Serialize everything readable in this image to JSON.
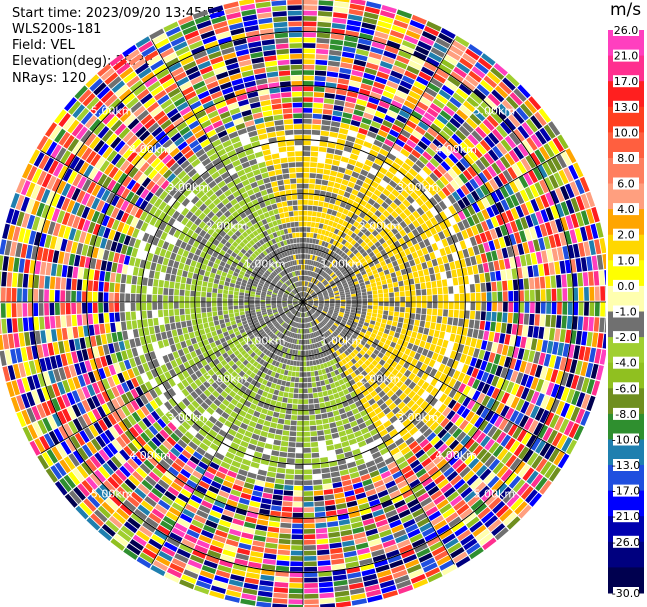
{
  "header": {
    "start_time": "Start time: 2023/09/20 13:45:53",
    "instrument": "WLS200s-181",
    "field": "Field: VEL",
    "elevation": "Elevation(deg): 35.30",
    "nrays": "NRays: 120"
  },
  "chart_data": {
    "type": "ppi",
    "field": "VEL",
    "unit": "m/s",
    "n_rays": 120,
    "elevation_deg": 35.3,
    "range_rings_km": [
      1.0,
      2.0,
      3.0,
      4.0,
      5.0
    ],
    "range_labels": [
      "1.00km",
      "2.00km",
      "3.00km",
      "4.00km",
      "5.00km"
    ],
    "max_range_km": 5.6,
    "colorbar": {
      "ticks": [
        "26.0",
        "21.0",
        "17.0",
        "13.0",
        "10.0",
        "8.0",
        "6.0",
        "4.0",
        "2.0",
        "1.0",
        "0.0",
        "-1.0",
        "-2.0",
        "-4.0",
        "-6.0",
        "-8.0",
        "-10.0",
        "-13.0",
        "-17.0",
        "-21.0",
        "-26.0",
        "-30.0"
      ],
      "bins": [
        {
          "min": 26,
          "max": 30,
          "color": "#ff3fbf"
        },
        {
          "min": 21,
          "max": 26,
          "color": "#ff2f8f"
        },
        {
          "min": 17,
          "max": 21,
          "color": "#ff1f1f"
        },
        {
          "min": 13,
          "max": 17,
          "color": "#ff3f1f"
        },
        {
          "min": 10,
          "max": 13,
          "color": "#ff5f3f"
        },
        {
          "min": 8,
          "max": 10,
          "color": "#ff7f5f"
        },
        {
          "min": 6,
          "max": 8,
          "color": "#ff9f7f"
        },
        {
          "min": 4,
          "max": 6,
          "color": "#ffa500"
        },
        {
          "min": 2,
          "max": 4,
          "color": "#ffd700"
        },
        {
          "min": 1,
          "max": 2,
          "color": "#ffff00"
        },
        {
          "min": 0,
          "max": 1,
          "color": "#ffffaf"
        },
        {
          "min": -1,
          "max": 0,
          "color": "#707070"
        },
        {
          "min": -2,
          "max": -1,
          "color": "#a0cf30"
        },
        {
          "min": -4,
          "max": -2,
          "color": "#90c020"
        },
        {
          "min": -6,
          "max": -4,
          "color": "#6f8f1f"
        },
        {
          "min": -8,
          "max": -6,
          "color": "#2f8f2f"
        },
        {
          "min": -10,
          "max": -8,
          "color": "#1f7faf"
        },
        {
          "min": -13,
          "max": -10,
          "color": "#1f4fdf"
        },
        {
          "min": -17,
          "max": -13,
          "color": "#0000ff"
        },
        {
          "min": -21,
          "max": -17,
          "color": "#0000af"
        },
        {
          "min": -26,
          "max": -21,
          "color": "#00007f"
        },
        {
          "min": -30,
          "max": -26,
          "color": "#00004f"
        }
      ]
    },
    "velocity_pattern": {
      "inner_clear_km": 2.3,
      "north_east_sector": {
        "value_m_s": 2.5,
        "range_km": [
          0.3,
          3.2
        ],
        "color": "#ffd700"
      },
      "south_west_sector": {
        "value_m_s": -1.5,
        "range_km": [
          0.3,
          3.2
        ],
        "color": "#a0cf30"
      },
      "near_center": {
        "value_m_s": -0.5,
        "range_km": [
          0.0,
          1.2
        ],
        "color": "#707070"
      },
      "outer_noise_km": [
        3.4,
        5.6
      ]
    }
  }
}
